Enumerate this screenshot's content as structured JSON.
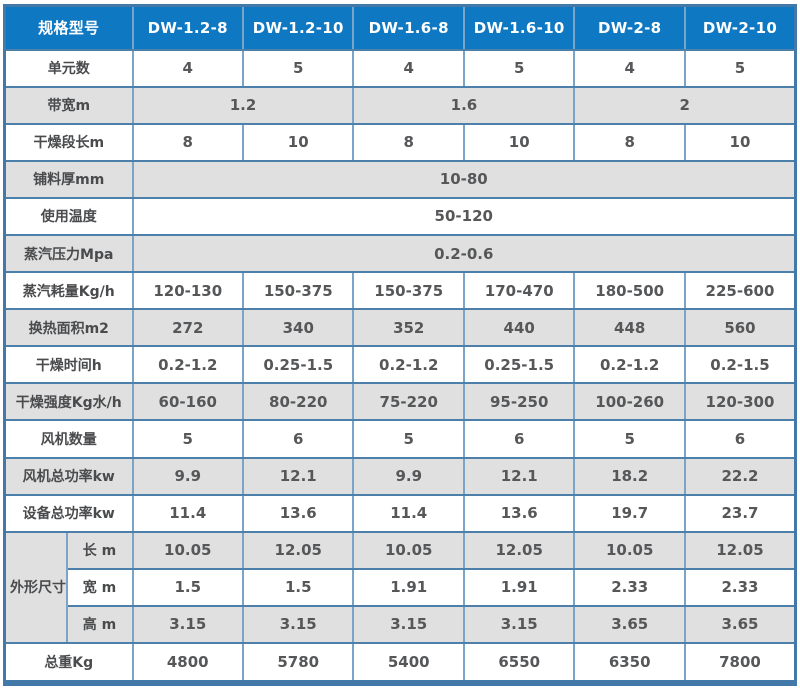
{
  "colors": {
    "header_bg": "#0f78c2",
    "header_text": "#ffffff",
    "row_gray": "#e0e0e0",
    "row_white": "#ffffff",
    "grid_line": "#4d7fab",
    "grid_line_light": "#7aa5c9",
    "value_text": "#565759"
  },
  "table": {
    "header": {
      "cells": [
        {
          "t": "规格型号",
          "cs": 2
        },
        {
          "t": "DW-1.2-8"
        },
        {
          "t": "DW-1.2-10"
        },
        {
          "t": "DW-1.6-8"
        },
        {
          "t": "DW-1.6-10"
        },
        {
          "t": "DW-2-8"
        },
        {
          "t": "DW-2-10"
        }
      ]
    },
    "rows": [
      {
        "shade": "white",
        "cells": [
          {
            "t": "单元数",
            "cs": 2,
            "label": true
          },
          {
            "t": "4"
          },
          {
            "t": "5"
          },
          {
            "t": "4"
          },
          {
            "t": "5"
          },
          {
            "t": "4"
          },
          {
            "t": "5"
          }
        ]
      },
      {
        "shade": "gray",
        "cells": [
          {
            "t": "带宽m",
            "cs": 2,
            "label": true
          },
          {
            "t": "1.2",
            "cs": 2
          },
          {
            "t": "1.6",
            "cs": 2
          },
          {
            "t": "2",
            "cs": 2
          }
        ]
      },
      {
        "shade": "white",
        "cells": [
          {
            "t": "干燥段长m",
            "cs": 2,
            "label": true
          },
          {
            "t": "8"
          },
          {
            "t": "10"
          },
          {
            "t": "8"
          },
          {
            "t": "10"
          },
          {
            "t": "8"
          },
          {
            "t": "10"
          }
        ]
      },
      {
        "shade": "gray",
        "cells": [
          {
            "t": "铺料厚mm",
            "cs": 2,
            "label": true
          },
          {
            "t": "10-80",
            "cs": 6
          }
        ]
      },
      {
        "shade": "white",
        "cells": [
          {
            "t": "使用温度",
            "cs": 2,
            "label": true
          },
          {
            "t": "50-120",
            "cs": 6
          }
        ]
      },
      {
        "shade": "gray",
        "cells": [
          {
            "t": "蒸汽压力Mpa",
            "cs": 2,
            "label": true
          },
          {
            "t": "0.2-0.6",
            "cs": 6
          }
        ]
      },
      {
        "shade": "white",
        "cells": [
          {
            "t": "蒸汽耗量Kg/h",
            "cs": 2,
            "label": true
          },
          {
            "t": "120-130"
          },
          {
            "t": "150-375"
          },
          {
            "t": "150-375"
          },
          {
            "t": "170-470"
          },
          {
            "t": "180-500"
          },
          {
            "t": "225-600"
          }
        ]
      },
      {
        "shade": "gray",
        "cells": [
          {
            "t": "换热面积m2",
            "cs": 2,
            "label": true
          },
          {
            "t": "272"
          },
          {
            "t": "340"
          },
          {
            "t": "352"
          },
          {
            "t": "440"
          },
          {
            "t": "448"
          },
          {
            "t": "560"
          }
        ]
      },
      {
        "shade": "white",
        "cells": [
          {
            "t": "干燥时间h",
            "cs": 2,
            "label": true
          },
          {
            "t": "0.2-1.2"
          },
          {
            "t": "0.25-1.5"
          },
          {
            "t": "0.2-1.2"
          },
          {
            "t": "0.25-1.5"
          },
          {
            "t": "0.2-1.2"
          },
          {
            "t": "0.2-1.5"
          }
        ]
      },
      {
        "shade": "gray",
        "cells": [
          {
            "t": "干燥强度Kg水/h",
            "cs": 2,
            "label": true
          },
          {
            "t": "60-160"
          },
          {
            "t": "80-220"
          },
          {
            "t": "75-220"
          },
          {
            "t": "95-250"
          },
          {
            "t": "100-260"
          },
          {
            "t": "120-300"
          }
        ]
      },
      {
        "shade": "white",
        "cells": [
          {
            "t": "风机数量",
            "cs": 2,
            "label": true
          },
          {
            "t": "5"
          },
          {
            "t": "6"
          },
          {
            "t": "5"
          },
          {
            "t": "6"
          },
          {
            "t": "5"
          },
          {
            "t": "6"
          }
        ]
      },
      {
        "shade": "gray",
        "cells": [
          {
            "t": "风机总功率kw",
            "cs": 2,
            "label": true
          },
          {
            "t": "9.9"
          },
          {
            "t": "12.1"
          },
          {
            "t": "9.9"
          },
          {
            "t": "12.1"
          },
          {
            "t": "18.2"
          },
          {
            "t": "22.2"
          }
        ]
      },
      {
        "shade": "white",
        "cells": [
          {
            "t": "设备总功率kw",
            "cs": 2,
            "label": true
          },
          {
            "t": "11.4"
          },
          {
            "t": "13.6"
          },
          {
            "t": "11.4"
          },
          {
            "t": "13.6"
          },
          {
            "t": "19.7"
          },
          {
            "t": "23.7"
          }
        ]
      },
      {
        "shade": "gray",
        "cells": [
          {
            "t": "外形尺寸",
            "rs": 3,
            "label": true,
            "force": "gray"
          },
          {
            "t": "长 m",
            "label": true
          },
          {
            "t": "10.05"
          },
          {
            "t": "12.05"
          },
          {
            "t": "10.05"
          },
          {
            "t": "12.05"
          },
          {
            "t": "10.05"
          },
          {
            "t": "12.05"
          }
        ]
      },
      {
        "shade": "white",
        "cells": [
          {
            "t": "宽 m",
            "label": true
          },
          {
            "t": "1.5"
          },
          {
            "t": "1.5"
          },
          {
            "t": "1.91"
          },
          {
            "t": "1.91"
          },
          {
            "t": "2.33"
          },
          {
            "t": "2.33"
          }
        ]
      },
      {
        "shade": "gray",
        "cells": [
          {
            "t": "高 m",
            "label": true
          },
          {
            "t": "3.15"
          },
          {
            "t": "3.15"
          },
          {
            "t": "3.15"
          },
          {
            "t": "3.15"
          },
          {
            "t": "3.65"
          },
          {
            "t": "3.65"
          }
        ]
      },
      {
        "shade": "white",
        "cells": [
          {
            "t": "总重Kg",
            "cs": 2,
            "label": true
          },
          {
            "t": "4800"
          },
          {
            "t": "5780"
          },
          {
            "t": "5400"
          },
          {
            "t": "6550"
          },
          {
            "t": "6350"
          },
          {
            "t": "7800"
          }
        ]
      }
    ]
  },
  "chart_data": {
    "type": "table",
    "title": "规格型号参数表",
    "columns": [
      "规格型号",
      "DW-1.2-8",
      "DW-1.2-10",
      "DW-1.6-8",
      "DW-1.6-10",
      "DW-2-8",
      "DW-2-10"
    ],
    "rows": [
      [
        "单元数",
        "4",
        "5",
        "4",
        "5",
        "4",
        "5"
      ],
      [
        "带宽m",
        "1.2",
        "1.2",
        "1.6",
        "1.6",
        "2",
        "2"
      ],
      [
        "干燥段长m",
        "8",
        "10",
        "8",
        "10",
        "8",
        "10"
      ],
      [
        "铺料厚mm",
        "10-80",
        "10-80",
        "10-80",
        "10-80",
        "10-80",
        "10-80"
      ],
      [
        "使用温度",
        "50-120",
        "50-120",
        "50-120",
        "50-120",
        "50-120",
        "50-120"
      ],
      [
        "蒸汽压力Mpa",
        "0.2-0.6",
        "0.2-0.6",
        "0.2-0.6",
        "0.2-0.6",
        "0.2-0.6",
        "0.2-0.6"
      ],
      [
        "蒸汽耗量Kg/h",
        "120-130",
        "150-375",
        "150-375",
        "170-470",
        "180-500",
        "225-600"
      ],
      [
        "换热面积m2",
        "272",
        "340",
        "352",
        "440",
        "448",
        "560"
      ],
      [
        "干燥时间h",
        "0.2-1.2",
        "0.25-1.5",
        "0.2-1.2",
        "0.25-1.5",
        "0.2-1.2",
        "0.2-1.5"
      ],
      [
        "干燥强度Kg水/h",
        "60-160",
        "80-220",
        "75-220",
        "95-250",
        "100-260",
        "120-300"
      ],
      [
        "风机数量",
        "5",
        "6",
        "5",
        "6",
        "5",
        "6"
      ],
      [
        "风机总功率kw",
        "9.9",
        "12.1",
        "9.9",
        "12.1",
        "18.2",
        "22.2"
      ],
      [
        "设备总功率kw",
        "11.4",
        "13.6",
        "11.4",
        "13.6",
        "19.7",
        "23.7"
      ],
      [
        "外形尺寸 长 m",
        "10.05",
        "12.05",
        "10.05",
        "12.05",
        "10.05",
        "12.05"
      ],
      [
        "外形尺寸 宽 m",
        "1.5",
        "1.5",
        "1.91",
        "1.91",
        "2.33",
        "2.33"
      ],
      [
        "外形尺寸 高 m",
        "3.15",
        "3.15",
        "3.15",
        "3.15",
        "3.65",
        "3.65"
      ],
      [
        "总重Kg",
        "4800",
        "5780",
        "5400",
        "6550",
        "6350",
        "7800"
      ]
    ],
    "layout": {
      "header_fill": "#0f78c2",
      "alt_row_fill": "#e0e0e0",
      "grid": true
    }
  }
}
